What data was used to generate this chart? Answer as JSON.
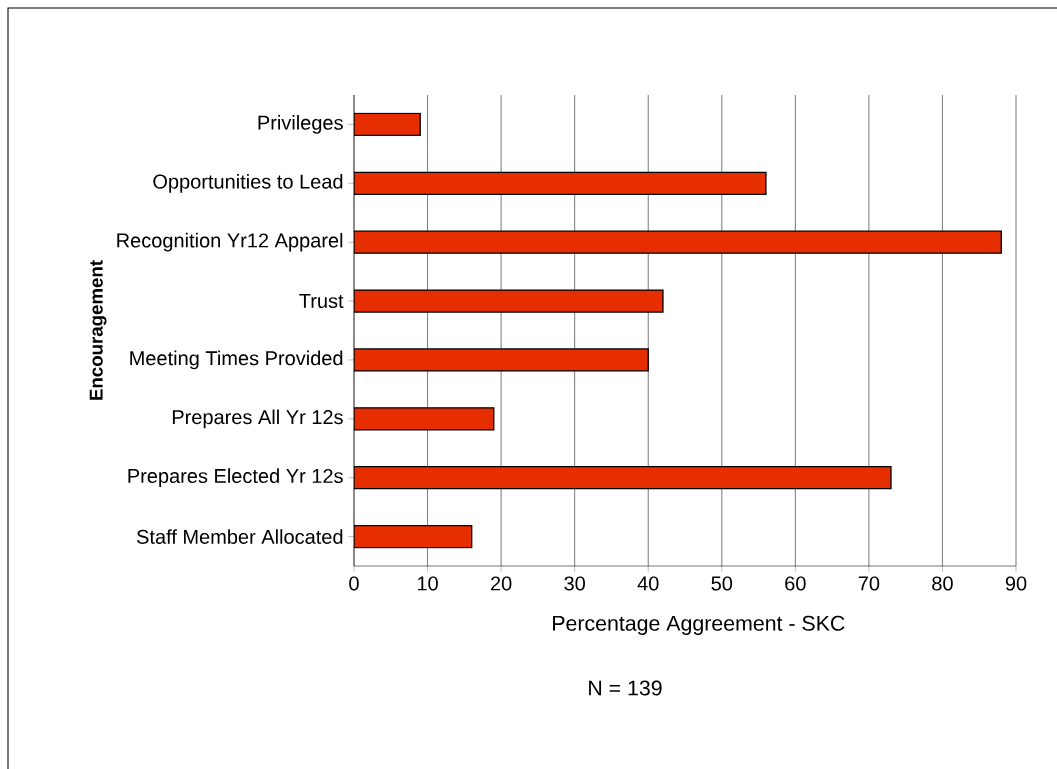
{
  "chart_data": {
    "type": "bar",
    "orientation": "horizontal",
    "categories": [
      "Privileges",
      "Opportunities to Lead",
      "Recognition Yr12 Apparel",
      "Trust",
      "Meeting Times Provided",
      "Prepares All Yr 12s",
      "Prepares Elected Yr 12s",
      "Staff Member Allocated"
    ],
    "values": [
      9,
      56,
      88,
      42,
      40,
      19,
      73,
      16
    ],
    "color": "#e62e00",
    "xlabel": "Percentage Aggreement - SKC",
    "ylabel": "Encouragement",
    "annotations": [
      "N = 139"
    ],
    "xlim": [
      0,
      90
    ],
    "xticks": [
      0,
      10,
      20,
      30,
      40,
      50,
      60,
      70,
      80,
      90
    ],
    "grid": "x"
  }
}
